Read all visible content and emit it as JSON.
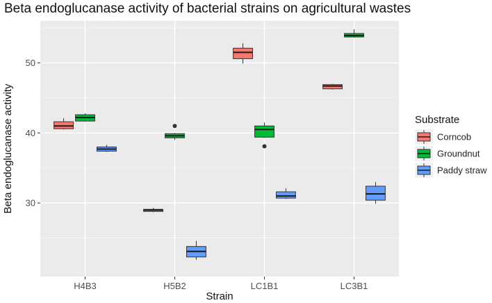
{
  "chart_data": {
    "type": "box",
    "title": "Beta endoglucanase activity of bacterial strains on agricultural wastes",
    "xlabel": "Strain",
    "ylabel": "Beta endoglucanase activity",
    "categories": [
      "H4B3",
      "H5B2",
      "LC1B1",
      "LC3B1"
    ],
    "ylim": [
      19.5,
      56
    ],
    "yticks": [
      30,
      40,
      50
    ],
    "grid": true,
    "legend": {
      "title": "Substrate",
      "position": "right"
    },
    "series": [
      {
        "name": "Corncob",
        "color": "#F8766D",
        "boxes": [
          {
            "category": "H4B3",
            "min": 40.5,
            "q1": 40.6,
            "median": 41.0,
            "q3": 41.6,
            "max": 42.1,
            "outliers": []
          },
          {
            "category": "H5B2",
            "min": 28.7,
            "q1": 28.8,
            "median": 29.0,
            "q3": 29.1,
            "max": 29.3,
            "outliers": []
          },
          {
            "category": "LC1B1",
            "min": 49.9,
            "q1": 50.6,
            "median": 51.5,
            "q3": 52.1,
            "max": 52.8,
            "outliers": []
          },
          {
            "category": "LC3B1",
            "min": 46.2,
            "q1": 46.3,
            "median": 46.7,
            "q3": 46.9,
            "max": 47.0,
            "outliers": []
          }
        ]
      },
      {
        "name": "Groundnut",
        "color": "#00BA38",
        "boxes": [
          {
            "category": "H4B3",
            "min": 41.6,
            "q1": 41.7,
            "median": 42.2,
            "q3": 42.6,
            "max": 42.8,
            "outliers": []
          },
          {
            "category": "H5B2",
            "min": 39.0,
            "q1": 39.3,
            "median": 39.6,
            "q3": 39.9,
            "max": 40.0,
            "outliers": [
              41.0
            ]
          },
          {
            "category": "LC1B1",
            "min": 39.3,
            "q1": 39.4,
            "median": 40.5,
            "q3": 41.0,
            "max": 41.5,
            "outliers": [
              38.1
            ]
          },
          {
            "category": "LC3B1",
            "min": 53.6,
            "q1": 53.7,
            "median": 53.9,
            "q3": 54.2,
            "max": 54.8,
            "outliers": []
          }
        ]
      },
      {
        "name": "Paddy straw",
        "color": "#619CFF",
        "boxes": [
          {
            "category": "H4B3",
            "min": 37.3,
            "q1": 37.4,
            "median": 37.7,
            "q3": 38.0,
            "max": 38.3,
            "outliers": []
          },
          {
            "category": "H5B2",
            "min": 21.9,
            "q1": 22.3,
            "median": 23.1,
            "q3": 23.8,
            "max": 24.6,
            "outliers": []
          },
          {
            "category": "LC1B1",
            "min": 30.6,
            "q1": 30.7,
            "median": 31.0,
            "q3": 31.6,
            "max": 32.1,
            "outliers": []
          },
          {
            "category": "LC3B1",
            "min": 29.9,
            "q1": 30.4,
            "median": 31.3,
            "q3": 32.4,
            "max": 33.0,
            "outliers": []
          }
        ]
      }
    ]
  }
}
